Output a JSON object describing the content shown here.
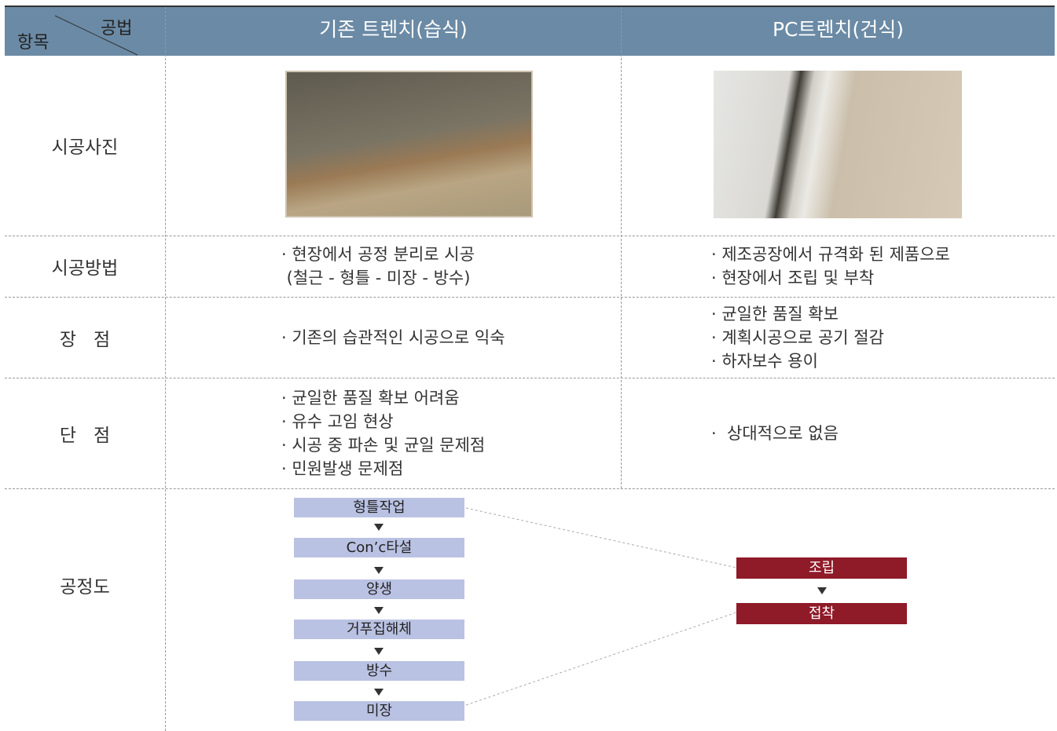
{
  "header": {
    "corner_top": "공법",
    "corner_bottom": "항목",
    "columns": [
      "기존 트렌치(습식)",
      "PC트렌치(건식)"
    ]
  },
  "rows": [
    {
      "label": "시공사진"
    },
    {
      "label": "시공방법",
      "wet": [
        "· 현장에서 공정 분리로 시공",
        " (철근 - 형틀 - 미장 - 방수)"
      ],
      "dry": [
        "· 제조공장에서 규격화 된 제품으로",
        "· 현장에서 조립 및 부착"
      ]
    },
    {
      "label": "장   점",
      "wet": [
        "· 기존의 습관적인 시공으로 익숙"
      ],
      "dry": [
        "· 균일한 품질 확보",
        "· 계획시공으로 공기 절감",
        "· 하자보수 용이"
      ]
    },
    {
      "label": "단   점",
      "wet": [
        "· 균일한 품질 확보 어려움",
        "· 유수 고임 현상",
        "· 시공 중 파손 및 균일 문제점",
        "· 민원발생 문제점"
      ],
      "dry": [
        "·  상대적으로 없음"
      ]
    }
  ],
  "process": {
    "label": "공정도",
    "wet": [
      "형틀작업",
      "Con’c타설",
      "양생",
      "거푸집해체",
      "방수",
      "미장"
    ],
    "dry": [
      "조립",
      "접착"
    ]
  }
}
